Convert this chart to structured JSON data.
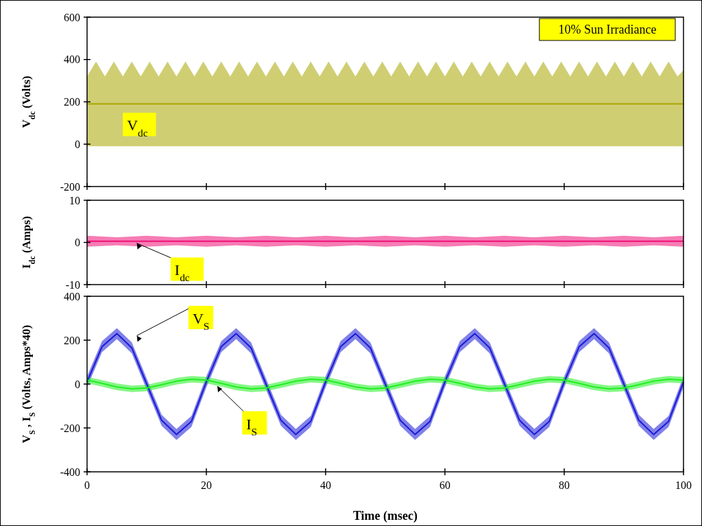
{
  "chart_data": [
    {
      "type": "line",
      "ylabel": "V$_{dc}$ (Volts)",
      "xlim": [
        0,
        100
      ],
      "xticks": [
        0,
        20,
        40,
        60,
        80,
        100
      ],
      "ylim": [
        -200,
        600
      ],
      "yticks": [
        -200,
        0,
        200,
        400,
        600
      ],
      "tick_labels": "y",
      "legend": false,
      "annotations": [
        "10% Sun Irradiance"
      ],
      "series": [
        {
          "name": "V$_{dc}$",
          "color": "#aaa600",
          "x": [
            0,
            1.5,
            3,
            4.5,
            6,
            7.5,
            9,
            10.5,
            12,
            13.5,
            15,
            16.5,
            18,
            19.5,
            21,
            22.5,
            24,
            25.5,
            27,
            28.5,
            30,
            31.5,
            33,
            34.5,
            36,
            37.5,
            39,
            40.5,
            42,
            43.5,
            45,
            46.5,
            48,
            49.5,
            51,
            52.5,
            54,
            55.5,
            57,
            58.5,
            60,
            61.5,
            63,
            64.5,
            66,
            67.5,
            69,
            70.5,
            72,
            73.5,
            75,
            76.5,
            78,
            79.5,
            81,
            82.5,
            84,
            85.5,
            87,
            88.5,
            90,
            91.5,
            93,
            94.5,
            96,
            97.5,
            99,
            100
          ],
          "values": [
            190,
            190,
            190,
            190,
            190,
            190,
            190,
            190,
            190,
            190,
            190,
            190,
            190,
            190,
            190,
            190,
            190,
            190,
            190,
            190,
            190,
            190,
            190,
            190,
            190,
            190,
            190,
            190,
            190,
            190,
            190,
            190,
            190,
            190,
            190,
            190,
            190,
            190,
            190,
            190,
            190,
            190,
            190,
            190,
            190,
            190,
            190,
            190,
            190,
            190,
            190,
            190,
            190,
            190,
            190,
            190,
            190,
            190,
            190,
            190,
            190,
            190,
            190,
            190,
            190,
            190,
            190,
            190
          ],
          "upper": [
            320,
            390,
            320,
            390,
            320,
            390,
            320,
            390,
            320,
            390,
            320,
            390,
            320,
            390,
            320,
            390,
            320,
            390,
            320,
            390,
            320,
            390,
            320,
            390,
            320,
            390,
            320,
            390,
            320,
            390,
            320,
            390,
            320,
            390,
            320,
            390,
            320,
            390,
            320,
            390,
            320,
            390,
            320,
            390,
            320,
            390,
            320,
            390,
            320,
            390,
            320,
            390,
            320,
            390,
            320,
            390,
            320,
            390,
            320,
            390,
            320,
            390,
            320,
            390,
            320,
            390,
            320,
            350
          ],
          "lower": [
            -10,
            -10,
            -10,
            -10,
            -10,
            -10,
            -10,
            -10,
            -10,
            -10,
            -10,
            -10,
            -10,
            -10,
            -10,
            -10,
            -10,
            -10,
            -10,
            -10,
            -10,
            -10,
            -10,
            -10,
            -10,
            -10,
            -10,
            -10,
            -10,
            -10,
            -10,
            -10,
            -10,
            -10,
            -10,
            -10,
            -10,
            -10,
            -10,
            -10,
            -10,
            -10,
            -10,
            -10,
            -10,
            -10,
            -10,
            -10,
            -10,
            -10,
            -10,
            -10,
            -10,
            -10,
            -10,
            -10,
            -10,
            -10,
            -10,
            -10,
            -10,
            -10,
            -10,
            -10,
            -10,
            -10,
            -10,
            -10
          ]
        }
      ]
    },
    {
      "type": "line",
      "ylabel": "I$_{dc}$ (Amps)",
      "xlim": [
        0,
        100
      ],
      "xticks": [
        0,
        20,
        40,
        60,
        80,
        100
      ],
      "ylim": [
        -10,
        10
      ],
      "yticks": [
        -10,
        0,
        10
      ],
      "tick_labels": "y",
      "legend": false,
      "series": [
        {
          "name": "I$_{dc}$",
          "color": "#ee1177",
          "x": [
            0,
            5,
            10,
            15,
            20,
            25,
            30,
            35,
            40,
            45,
            50,
            55,
            60,
            65,
            70,
            75,
            80,
            85,
            90,
            95,
            100
          ],
          "values": [
            0.3,
            0.3,
            0.3,
            0.3,
            0.3,
            0.3,
            0.3,
            0.3,
            0.3,
            0.3,
            0.3,
            0.3,
            0.3,
            0.3,
            0.3,
            0.3,
            0.3,
            0.3,
            0.3,
            0.3,
            0.3
          ],
          "upper": [
            1.6,
            1.2,
            1.6,
            1.2,
            1.6,
            1.2,
            1.6,
            1.2,
            1.6,
            1.2,
            1.6,
            1.2,
            1.6,
            1.2,
            1.6,
            1.2,
            1.6,
            1.2,
            1.6,
            1.2,
            1.6
          ],
          "lower": [
            -1,
            -0.7,
            -1,
            -0.7,
            -1,
            -0.7,
            -1,
            -0.7,
            -1,
            -0.7,
            -1,
            -0.7,
            -1,
            -0.7,
            -1,
            -0.7,
            -1,
            -0.7,
            -1,
            -0.7,
            -1
          ]
        }
      ]
    },
    {
      "type": "line",
      "xlabel": "Time (msec)",
      "ylabel": "V$_{S}$ , I$_{S}$ (Volts, Amps*40)",
      "xlim": [
        0,
        100
      ],
      "xticks": [
        0,
        20,
        40,
        60,
        80,
        100
      ],
      "ylim": [
        -400,
        400
      ],
      "yticks": [
        -400,
        -200,
        0,
        200,
        400
      ],
      "legend": false,
      "series": [
        {
          "name": "V$_{S}$",
          "color": "#1a1ad6",
          "x": [
            0,
            2.5,
            5,
            7.5,
            10,
            12.5,
            15,
            17.5,
            20,
            22.5,
            25,
            27.5,
            30,
            32.5,
            35,
            37.5,
            40,
            42.5,
            45,
            47.5,
            50,
            52.5,
            55,
            57.5,
            60,
            62.5,
            65,
            67.5,
            70,
            72.5,
            75,
            77.5,
            80,
            82.5,
            85,
            87.5,
            90,
            92.5,
            95,
            97.5,
            100
          ],
          "values": [
            10,
            170,
            230,
            165,
            0,
            -165,
            -230,
            -170,
            10,
            170,
            230,
            165,
            0,
            -165,
            -230,
            -170,
            10,
            170,
            230,
            165,
            0,
            -165,
            -230,
            -170,
            10,
            170,
            230,
            165,
            0,
            -165,
            -230,
            -170,
            10,
            170,
            230,
            165,
            0,
            -165,
            -230,
            -170,
            10
          ],
          "lower": [
            -15,
            145,
            205,
            140,
            -25,
            -190,
            -255,
            -195,
            -15,
            145,
            205,
            140,
            -25,
            -190,
            -255,
            -195,
            -15,
            145,
            205,
            140,
            -25,
            -190,
            -255,
            -195,
            -15,
            145,
            205,
            140,
            -25,
            -190,
            -255,
            -195,
            -15,
            145,
            205,
            140,
            -25,
            -190,
            -255,
            -195,
            -15
          ],
          "upper": [
            35,
            195,
            255,
            190,
            25,
            -140,
            -205,
            -145,
            35,
            195,
            255,
            190,
            25,
            -140,
            -205,
            -145,
            35,
            195,
            255,
            190,
            25,
            -140,
            -205,
            -145,
            35,
            195,
            255,
            190,
            25,
            -140,
            -205,
            -145,
            35,
            195,
            255,
            190,
            25,
            -140,
            -205,
            -145,
            35
          ]
        },
        {
          "name": "I$_{S}$",
          "color": "#22ee22",
          "x": [
            0,
            2.5,
            5,
            7.5,
            10,
            12.5,
            15,
            17.5,
            20,
            22.5,
            25,
            27.5,
            30,
            32.5,
            35,
            37.5,
            40,
            42.5,
            45,
            47.5,
            50,
            52.5,
            55,
            57.5,
            60,
            62.5,
            65,
            67.5,
            70,
            72.5,
            75,
            77.5,
            80,
            82.5,
            85,
            87.5,
            90,
            92.5,
            95,
            97.5,
            100
          ],
          "values": [
            18,
            3,
            -13,
            -22,
            -18,
            -3,
            13,
            22,
            18,
            3,
            -13,
            -22,
            -18,
            -3,
            13,
            22,
            18,
            3,
            -13,
            -22,
            -18,
            -3,
            13,
            22,
            18,
            3,
            -13,
            -22,
            -18,
            -3,
            13,
            22,
            18,
            3,
            -13,
            -22,
            -18,
            -3,
            13,
            22,
            18
          ],
          "lower": [
            3,
            -12,
            -28,
            -37,
            -33,
            -18,
            -2,
            7,
            3,
            -12,
            -28,
            -37,
            -33,
            -18,
            -2,
            7,
            3,
            -12,
            -28,
            -37,
            -33,
            -18,
            -2,
            7,
            3,
            -12,
            -28,
            -37,
            -33,
            -18,
            -2,
            7,
            3,
            -12,
            -28,
            -37,
            -33,
            -18,
            -2,
            7,
            3
          ],
          "upper": [
            33,
            18,
            2,
            -7,
            -3,
            12,
            28,
            37,
            33,
            18,
            2,
            -7,
            -3,
            12,
            28,
            37,
            33,
            18,
            2,
            -7,
            -3,
            12,
            28,
            37,
            33,
            18,
            2,
            -7,
            -3,
            12,
            28,
            37,
            33,
            18,
            2,
            -7,
            -3,
            12,
            28,
            37,
            33
          ]
        }
      ]
    }
  ]
}
